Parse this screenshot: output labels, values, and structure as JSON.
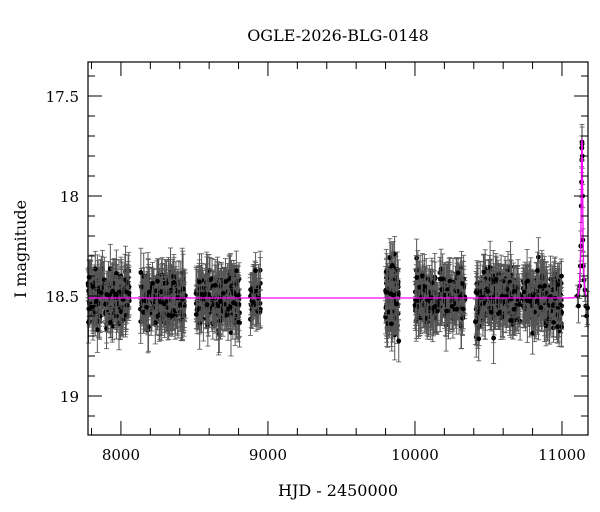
{
  "chart_data": {
    "type": "scatter",
    "title": "OGLE-2026-BLG-0148",
    "xlabel": "HJD - 2450000",
    "ylabel": "I magnitude",
    "xlim": [
      7776,
      11177
    ],
    "ylim": [
      19.195,
      17.33
    ],
    "y_inverted": true,
    "grid": false,
    "x_ticks": [
      8000,
      9000,
      10000,
      11000
    ],
    "x_tick_labels": [
      "8000",
      "9000",
      "10000",
      "11000"
    ],
    "x_minor_step": 200,
    "y_ticks": [
      17.5,
      18,
      18.5,
      19
    ],
    "y_tick_labels": [
      "17.5",
      "18",
      "18.5",
      "19"
    ],
    "y_minor_step": 0.1,
    "baseline_mag": 18.51,
    "observing_seasons": [
      {
        "start": 7776,
        "end": 8060,
        "scatter": 0.06,
        "n": 220
      },
      {
        "start": 8130,
        "end": 8440,
        "scatter": 0.06,
        "n": 240
      },
      {
        "start": 8510,
        "end": 8810,
        "scatter": 0.065,
        "n": 240
      },
      {
        "start": 8880,
        "end": 8950,
        "scatter": 0.05,
        "n": 50
      },
      {
        "start": 9800,
        "end": 9890,
        "scatter": 0.09,
        "n": 120
      },
      {
        "start": 10000,
        "end": 10340,
        "scatter": 0.06,
        "n": 240
      },
      {
        "start": 10410,
        "end": 10720,
        "scatter": 0.06,
        "n": 240
      },
      {
        "start": 10735,
        "end": 11000,
        "scatter": 0.065,
        "n": 240
      }
    ],
    "event_points": [
      {
        "x": 11120,
        "y": 18.45
      },
      {
        "x": 11125,
        "y": 18.35
      },
      {
        "x": 11128,
        "y": 18.25
      },
      {
        "x": 11131,
        "y": 18.05
      },
      {
        "x": 11133,
        "y": 17.93
      },
      {
        "x": 11134,
        "y": 17.82
      },
      {
        "x": 11135,
        "y": 17.76
      },
      {
        "x": 11136,
        "y": 17.73
      },
      {
        "x": 11137,
        "y": 17.74
      },
      {
        "x": 11138,
        "y": 17.8
      },
      {
        "x": 11140,
        "y": 18.0
      },
      {
        "x": 11142,
        "y": 18.22
      },
      {
        "x": 11145,
        "y": 18.35
      },
      {
        "x": 11150,
        "y": 18.42
      },
      {
        "x": 11156,
        "y": 18.47
      },
      {
        "x": 11162,
        "y": 18.55
      },
      {
        "x": 11168,
        "y": 18.6
      },
      {
        "x": 11174,
        "y": 18.56
      },
      {
        "x": 11105,
        "y": 18.5
      },
      {
        "x": 11112,
        "y": 18.55
      }
    ],
    "model": {
      "type": "point-lens",
      "color": "#ff00ff",
      "t0": 11136,
      "tE": 9,
      "u0": 0.53,
      "baseline_mag": 18.51
    },
    "point_color": "#000000",
    "errorbar_color": "#555555"
  }
}
